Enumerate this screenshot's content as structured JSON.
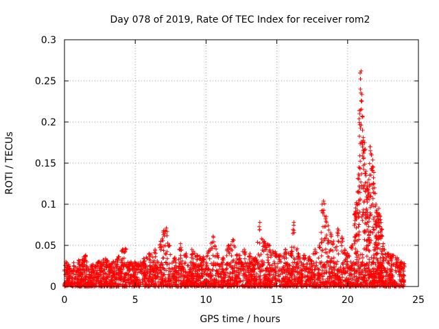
{
  "chart_data": {
    "type": "scatter",
    "title": "Day 078 of 2019, Rate Of TEC Index for receiver rom2",
    "xlabel": "GPS time / hours",
    "ylabel": "ROTI / TECUs",
    "xlim": [
      0,
      25
    ],
    "ylim": [
      0,
      0.3
    ],
    "x_ticks": [
      0,
      5,
      10,
      15,
      20,
      25
    ],
    "x_tick_labels": [
      "0",
      "5",
      "10",
      "15",
      "20",
      "25"
    ],
    "y_ticks": [
      0,
      0.05,
      0.1,
      0.15,
      0.2,
      0.25,
      0.3
    ],
    "y_tick_labels": [
      "0",
      "0.05",
      "0.1",
      "0.15",
      "0.2",
      "0.25",
      "0.3"
    ],
    "grid": true,
    "marker": "+",
    "color": "#ff0000",
    "series": [
      {
        "name": "ROTI",
        "x": [
          0.1,
          0.3,
          0.6,
          1.0,
          1.5,
          1.9,
          2.4,
          2.9,
          3.3,
          3.8,
          4.1,
          4.3,
          4.7,
          5.2,
          5.6,
          6.0,
          6.4,
          6.8,
          7.0,
          7.2,
          7.4,
          7.8,
          8.2,
          8.6,
          9.0,
          9.4,
          9.8,
          10.2,
          10.5,
          10.8,
          11.2,
          11.6,
          11.9,
          12.3,
          12.7,
          13.1,
          13.5,
          13.8,
          14.1,
          14.5,
          14.9,
          15.2,
          15.6,
          16.0,
          16.2,
          16.5,
          16.9,
          17.3,
          17.7,
          18.0,
          18.2,
          18.3,
          18.5,
          18.8,
          19.0,
          19.3,
          19.6,
          19.8,
          20.0,
          20.3,
          20.5,
          20.6,
          20.7,
          20.8,
          20.85,
          20.9,
          20.95,
          21.0,
          21.05,
          21.1,
          21.2,
          21.3,
          21.4,
          21.5,
          21.6,
          21.7,
          21.8,
          21.9,
          22.0,
          22.1,
          22.2,
          22.3,
          22.4,
          22.6,
          22.9,
          23.2,
          23.5,
          23.8,
          24.0
        ],
        "y": [
          0.03,
          0.025,
          0.02,
          0.032,
          0.038,
          0.026,
          0.03,
          0.034,
          0.028,
          0.036,
          0.045,
          0.046,
          0.03,
          0.028,
          0.034,
          0.04,
          0.045,
          0.055,
          0.068,
          0.071,
          0.05,
          0.035,
          0.052,
          0.04,
          0.045,
          0.038,
          0.036,
          0.044,
          0.061,
          0.04,
          0.035,
          0.05,
          0.057,
          0.038,
          0.045,
          0.04,
          0.035,
          0.078,
          0.055,
          0.05,
          0.042,
          0.038,
          0.045,
          0.04,
          0.078,
          0.04,
          0.038,
          0.036,
          0.045,
          0.05,
          0.1,
          0.104,
          0.085,
          0.065,
          0.055,
          0.07,
          0.06,
          0.045,
          0.04,
          0.05,
          0.088,
          0.1,
          0.115,
          0.145,
          0.21,
          0.24,
          0.262,
          0.225,
          0.19,
          0.165,
          0.175,
          0.14,
          0.12,
          0.13,
          0.17,
          0.16,
          0.145,
          0.12,
          0.1,
          0.085,
          0.095,
          0.085,
          0.07,
          0.045,
          0.04,
          0.038,
          0.035,
          0.03,
          0.028
        ],
        "baseline_band": [
          0,
          0.03
        ]
      }
    ]
  }
}
